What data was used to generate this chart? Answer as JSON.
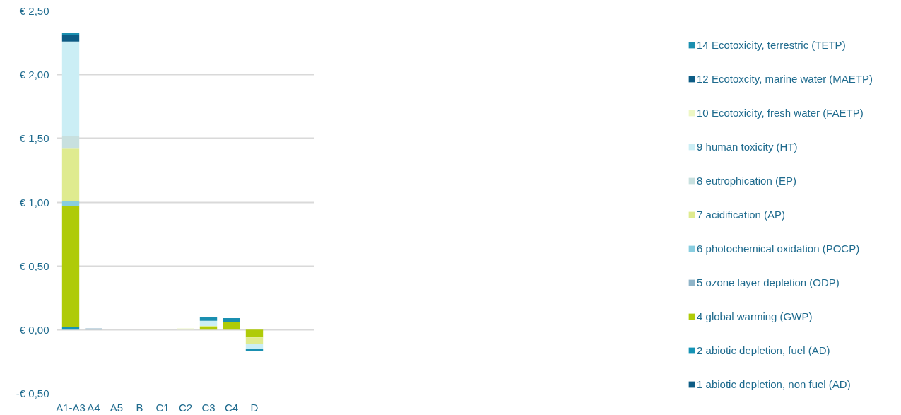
{
  "chart_data": {
    "type": "bar",
    "stacked": true,
    "categories": [
      "A1-A3",
      "A4",
      "A5",
      "B",
      "C1",
      "C2",
      "C3",
      "C4",
      "D",
      null,
      null
    ],
    "series": [
      {
        "name": "1 abiotic depletion, non fuel (AD)",
        "color": "#0d5c85",
        "values": [
          0,
          0,
          0,
          0,
          0,
          0,
          0,
          0,
          0,
          0,
          0
        ]
      },
      {
        "name": "2 abiotic depletion, fuel (AD)",
        "color": "#1593b5",
        "values": [
          0.02,
          0,
          0,
          0,
          0,
          0,
          0,
          0,
          0,
          0,
          0
        ]
      },
      {
        "name": "4 global warming (GWP)",
        "color": "#afcb08",
        "values": [
          0.95,
          0,
          0,
          0,
          0,
          0,
          0.02,
          0.06,
          -0.06,
          0,
          0
        ]
      },
      {
        "name": "5 ozone layer depletion (ODP)",
        "color": "#8fb4c8",
        "values": [
          0,
          0.01,
          0,
          0,
          0,
          0,
          0,
          0,
          0,
          0,
          0
        ]
      },
      {
        "name": "6 photochemical oxidation (POCP)",
        "color": "#88cde0",
        "values": [
          0.04,
          0,
          0,
          0,
          0,
          0,
          0,
          0,
          0,
          0,
          0
        ]
      },
      {
        "name": "7 acidification (AP)",
        "color": "#dfeb8f",
        "values": [
          0.41,
          0,
          0,
          0,
          0,
          0,
          0.01,
          0,
          -0.05,
          0,
          0
        ]
      },
      {
        "name": "8 eutrophication (EP)",
        "color": "#c8e0df",
        "values": [
          0.1,
          0,
          0,
          0,
          0,
          0,
          0,
          0,
          0,
          0,
          0
        ]
      },
      {
        "name": "9 human toxicity (HT)",
        "color": "#cbeef5",
        "values": [
          0.74,
          0,
          0,
          0,
          0,
          0,
          0.04,
          0,
          -0.04,
          0,
          0
        ]
      },
      {
        "name": "10 Ecotoxicity, fresh water (FAETP)",
        "color": "#eef7c5",
        "values": [
          0,
          0,
          0,
          0,
          0,
          0.01,
          0,
          0,
          0,
          0,
          0
        ]
      },
      {
        "name": "12 Ecotoxcity, marine water (MAETP)",
        "color": "#0d5c85",
        "values": [
          0.05,
          0,
          0,
          0,
          0,
          0,
          0,
          0,
          0,
          0,
          0
        ]
      },
      {
        "name": "14 Ecotoxicity, terrestric (TETP)",
        "color": "#1a8fb0",
        "values": [
          0.02,
          0,
          0,
          0,
          0,
          0,
          0.03,
          0.03,
          -0.02,
          0,
          0
        ]
      }
    ],
    "ylim": [
      -0.5,
      2.5
    ],
    "yticks": [
      {
        "value": -0.5,
        "label": "-€ 0,50"
      },
      {
        "value": 0,
        "label": "€ 0,00"
      },
      {
        "value": 0.5,
        "label": "€ 0,50"
      },
      {
        "value": 1,
        "label": "€ 1,00"
      },
      {
        "value": 1.5,
        "label": "€ 1,50"
      },
      {
        "value": 2,
        "label": "€ 2,00"
      },
      {
        "value": 2.5,
        "label": "€ 2,50"
      }
    ],
    "grid": "y",
    "legend": "right"
  }
}
